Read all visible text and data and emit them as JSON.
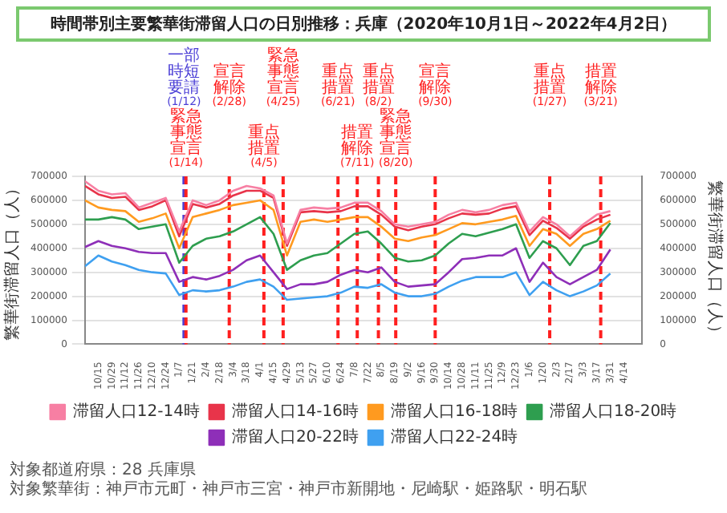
{
  "chart_data": {
    "type": "line",
    "title": "時間帯別主要繁華街滞留人口の日別推移：兵庫（2020年10月1日～2022年4月2日）",
    "ylabel": "繁華街滞留人口（人）",
    "y2label": "繁華街滞留人口（人）",
    "x": [
      "2020-10-01",
      "2020-10-15",
      "2020-10-29",
      "2020-11-12",
      "2020-11-26",
      "2020-12-10",
      "2020-12-24",
      "2021-01-07",
      "2021-01-21",
      "2021-02-04",
      "2021-02-18",
      "2021-03-04",
      "2021-03-18",
      "2021-04-01",
      "2021-04-15",
      "2021-04-29",
      "2021-05-13",
      "2021-05-27",
      "2021-06-10",
      "2021-06-24",
      "2021-07-08",
      "2021-07-22",
      "2021-08-05",
      "2021-08-19",
      "2021-09-02",
      "2021-09-16",
      "2021-09-30",
      "2021-10-14",
      "2021-10-28",
      "2021-11-11",
      "2021-11-25",
      "2021-12-09",
      "2021-12-23",
      "2022-01-06",
      "2022-01-20",
      "2022-02-03",
      "2022-02-17",
      "2022-03-03",
      "2022-03-17",
      "2022-03-31"
    ],
    "series": [
      {
        "name": "滞留人口12-14時",
        "color": "#f77fa3",
        "values": [
          680000,
          640000,
          625000,
          630000,
          570000,
          590000,
          610000,
          470000,
          600000,
          580000,
          600000,
          640000,
          660000,
          650000,
          620000,
          420000,
          560000,
          570000,
          565000,
          570000,
          590000,
          590000,
          555000,
          500000,
          490000,
          500000,
          510000,
          540000,
          560000,
          550000,
          560000,
          580000,
          590000,
          470000,
          530000,
          500000,
          450000,
          500000,
          540000,
          555000
        ]
      },
      {
        "name": "滞留人口14-16時",
        "color": "#e8344a",
        "values": [
          660000,
          625000,
          610000,
          615000,
          560000,
          575000,
          600000,
          450000,
          585000,
          570000,
          585000,
          620000,
          640000,
          640000,
          610000,
          410000,
          550000,
          555000,
          550000,
          555000,
          575000,
          575000,
          540000,
          490000,
          475000,
          490000,
          500000,
          525000,
          545000,
          540000,
          545000,
          565000,
          575000,
          455000,
          515000,
          485000,
          440000,
          490000,
          520000,
          540000
        ]
      },
      {
        "name": "滞留人口16-18時",
        "color": "#ff9a1f",
        "values": [
          600000,
          570000,
          560000,
          555000,
          510000,
          525000,
          545000,
          400000,
          530000,
          545000,
          560000,
          580000,
          590000,
          600000,
          560000,
          370000,
          510000,
          520000,
          510000,
          520000,
          530000,
          530000,
          490000,
          440000,
          430000,
          445000,
          455000,
          480000,
          505000,
          500000,
          510000,
          520000,
          535000,
          410000,
          480000,
          460000,
          410000,
          460000,
          480000,
          515000
        ]
      },
      {
        "name": "滞留人口18-20時",
        "color": "#2e9e4f",
        "values": [
          520000,
          520000,
          530000,
          520000,
          480000,
          490000,
          500000,
          340000,
          410000,
          440000,
          450000,
          470000,
          500000,
          530000,
          460000,
          310000,
          350000,
          370000,
          380000,
          420000,
          460000,
          470000,
          420000,
          360000,
          345000,
          350000,
          370000,
          420000,
          460000,
          450000,
          465000,
          480000,
          500000,
          360000,
          430000,
          400000,
          330000,
          410000,
          430000,
          505000
        ]
      },
      {
        "name": "滞留人口20-22時",
        "color": "#8e2fb8",
        "values": [
          405000,
          430000,
          410000,
          400000,
          385000,
          380000,
          380000,
          260000,
          280000,
          270000,
          285000,
          310000,
          350000,
          370000,
          300000,
          230000,
          250000,
          250000,
          260000,
          290000,
          310000,
          300000,
          320000,
          260000,
          240000,
          245000,
          250000,
          300000,
          355000,
          360000,
          370000,
          370000,
          400000,
          260000,
          340000,
          280000,
          250000,
          280000,
          310000,
          395000
        ]
      },
      {
        "name": "滞留人口22-24時",
        "color": "#3fa0f0",
        "values": [
          325000,
          370000,
          345000,
          330000,
          310000,
          300000,
          295000,
          205000,
          225000,
          220000,
          225000,
          240000,
          260000,
          270000,
          240000,
          185000,
          190000,
          195000,
          200000,
          215000,
          240000,
          235000,
          250000,
          215000,
          200000,
          200000,
          210000,
          240000,
          265000,
          280000,
          280000,
          280000,
          300000,
          205000,
          260000,
          225000,
          200000,
          220000,
          245000,
          295000
        ]
      }
    ],
    "xlim": [
      "2020-10-01",
      "2022-05-03"
    ],
    "xticks": [
      {
        "value": "2020-10-15",
        "label": "10/15"
      },
      {
        "value": "2020-10-29",
        "label": "10/29"
      },
      {
        "value": "2020-11-12",
        "label": "11/12"
      },
      {
        "value": "2020-11-26",
        "label": "11/26"
      },
      {
        "value": "2020-12-10",
        "label": "12/10"
      },
      {
        "value": "2020-12-24",
        "label": "12/24"
      },
      {
        "value": "2021-01-07",
        "label": "1/7"
      },
      {
        "value": "2021-01-21",
        "label": "1/21"
      },
      {
        "value": "2021-02-04",
        "label": "2/4"
      },
      {
        "value": "2021-02-18",
        "label": "2/18"
      },
      {
        "value": "2021-03-04",
        "label": "3/4"
      },
      {
        "value": "2021-03-18",
        "label": "3/18"
      },
      {
        "value": "2021-04-01",
        "label": "4/1"
      },
      {
        "value": "2021-04-15",
        "label": "4/15"
      },
      {
        "value": "2021-04-29",
        "label": "4/29"
      },
      {
        "value": "2021-05-13",
        "label": "5/13"
      },
      {
        "value": "2021-05-27",
        "label": "5/27"
      },
      {
        "value": "2021-06-10",
        "label": "6/10"
      },
      {
        "value": "2021-06-24",
        "label": "6/24"
      },
      {
        "value": "2021-07-08",
        "label": "7/8"
      },
      {
        "value": "2021-07-22",
        "label": "7/22"
      },
      {
        "value": "2021-08-05",
        "label": "8/5"
      },
      {
        "value": "2021-08-19",
        "label": "8/19"
      },
      {
        "value": "2021-09-02",
        "label": "9/2"
      },
      {
        "value": "2021-09-16",
        "label": "9/16"
      },
      {
        "value": "2021-09-30",
        "label": "9/30"
      },
      {
        "value": "2021-10-14",
        "label": "10/14"
      },
      {
        "value": "2021-10-28",
        "label": "10/28"
      },
      {
        "value": "2021-11-11",
        "label": "11/11"
      },
      {
        "value": "2021-11-25",
        "label": "11/25"
      },
      {
        "value": "2021-12-09",
        "label": "12/9"
      },
      {
        "value": "2021-12-23",
        "label": "12/23"
      },
      {
        "value": "2022-01-06",
        "label": "1/6"
      },
      {
        "value": "2022-01-20",
        "label": "1/20"
      },
      {
        "value": "2022-02-03",
        "label": "2/3"
      },
      {
        "value": "2022-02-17",
        "label": "2/17"
      },
      {
        "value": "2022-03-03",
        "label": "3/3"
      },
      {
        "value": "2022-03-17",
        "label": "3/17"
      },
      {
        "value": "2022-03-31",
        "label": "3/31"
      },
      {
        "value": "2022-04-14",
        "label": "4/14"
      }
    ],
    "ylim": [
      0,
      700000
    ],
    "yticks": [
      0,
      100000,
      200000,
      300000,
      400000,
      500000,
      600000,
      700000
    ],
    "y2lim": [
      0,
      700000
    ],
    "y2ticks": [
      0,
      100000,
      200000,
      300000,
      400000,
      500000,
      600000,
      700000
    ],
    "ref_lines": [
      {
        "axis": "x",
        "value": "2021-01-12",
        "label": "一部時短要請(1/12)",
        "color": "#4b3fd6",
        "line_style": "dashed"
      },
      {
        "axis": "x",
        "value": "2021-01-14",
        "label": "緊急事態宣言(1/14)",
        "color": "#ff1f1f",
        "line_style": "dashed"
      },
      {
        "axis": "x",
        "value": "2021-02-28",
        "label": "宣言解除(2/28)",
        "color": "#ff1f1f",
        "line_style": "dashed"
      },
      {
        "axis": "x",
        "value": "2021-04-05",
        "label": "重点措置(4/5)",
        "color": "#ff1f1f",
        "line_style": "dashed"
      },
      {
        "axis": "x",
        "value": "2021-04-25",
        "label": "緊急事態宣言(4/25)",
        "color": "#ff1f1f",
        "line_style": "dashed"
      },
      {
        "axis": "x",
        "value": "2021-06-21",
        "label": "重点措置(6/21)",
        "color": "#ff1f1f",
        "line_style": "dashed"
      },
      {
        "axis": "x",
        "value": "2021-07-11",
        "label": "措置解除(7/11)",
        "color": "#ff1f1f",
        "line_style": "dashed"
      },
      {
        "axis": "x",
        "value": "2021-08-02",
        "label": "重点措置(8/2)",
        "color": "#ff1f1f",
        "line_style": "dashed"
      },
      {
        "axis": "x",
        "value": "2021-08-20",
        "label": "緊急事態宣言(8/20)",
        "color": "#ff1f1f",
        "line_style": "dashed"
      },
      {
        "axis": "x",
        "value": "2021-09-30",
        "label": "宣言解除(9/30)",
        "color": "#ff1f1f",
        "line_style": "dashed"
      },
      {
        "axis": "x",
        "value": "2022-01-27",
        "label": "重点措置(1/27)",
        "color": "#ff1f1f",
        "line_style": "dashed"
      },
      {
        "axis": "x",
        "value": "2022-03-21",
        "label": "措置解除(3/21)",
        "color": "#ff1f1f",
        "line_style": "dashed"
      }
    ],
    "annotations": [
      "対象都道府県：28 兵庫県",
      "対象繁華街：神戸市元町・神戸市三宮・神戸市新開地・尼崎駅・姫路駅・明石駅"
    ],
    "grid": "y",
    "legend": "bottom",
    "marker": "none",
    "line_style": "solid"
  }
}
